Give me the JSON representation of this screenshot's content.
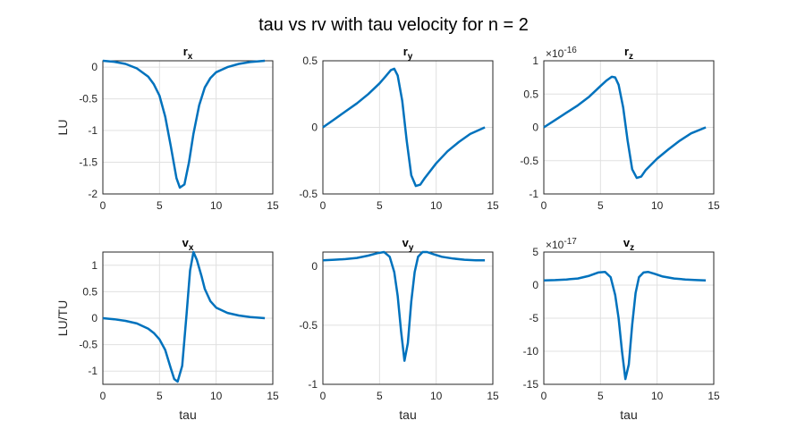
{
  "figure": {
    "title": "tau vs rv with tau velocity for n = 2"
  },
  "chart_data": [
    {
      "type": "line",
      "id": "rx",
      "title": "r",
      "title_sub": "x",
      "exponent": "",
      "xlabel": "",
      "ylabel": "LU",
      "xlim": [
        0,
        15
      ],
      "ylim": [
        -2,
        0.1
      ],
      "xticks": [
        "0",
        "5",
        "10",
        "15"
      ],
      "yticks": [
        [
          -2,
          "-2"
        ],
        [
          -1.5,
          "-1.5"
        ],
        [
          -1,
          "-1"
        ],
        [
          -0.5,
          "-0.5"
        ],
        [
          0,
          "0"
        ]
      ],
      "x": [
        0,
        1,
        2,
        3,
        4,
        4.5,
        5,
        5.5,
        6,
        6.5,
        6.8,
        7.2,
        7.6,
        8,
        8.5,
        9,
        9.5,
        10,
        11,
        12,
        13,
        14.3
      ],
      "y": [
        0.1,
        0.085,
        0.05,
        -0.02,
        -0.15,
        -0.27,
        -0.45,
        -0.78,
        -1.25,
        -1.75,
        -1.9,
        -1.85,
        -1.5,
        -1.05,
        -0.6,
        -0.32,
        -0.17,
        -0.08,
        0.0,
        0.05,
        0.08,
        0.1
      ]
    },
    {
      "type": "line",
      "id": "ry",
      "title": "r",
      "title_sub": "y",
      "exponent": "",
      "xlabel": "",
      "ylabel": "",
      "xlim": [
        0,
        15
      ],
      "ylim": [
        -0.5,
        0.5
      ],
      "xticks": [
        "0",
        "5",
        "10",
        "15"
      ],
      "yticks": [
        [
          -0.5,
          "-0.5"
        ],
        [
          0,
          "0"
        ],
        [
          0.5,
          "0.5"
        ]
      ],
      "x": [
        0,
        1,
        2,
        3,
        4,
        5,
        5.5,
        6,
        6.3,
        6.6,
        7,
        7.4,
        7.8,
        8.2,
        8.6,
        9,
        10,
        11,
        12,
        13,
        14.3
      ],
      "y": [
        0,
        0.06,
        0.12,
        0.18,
        0.25,
        0.33,
        0.38,
        0.43,
        0.44,
        0.39,
        0.2,
        -0.1,
        -0.36,
        -0.44,
        -0.43,
        -0.38,
        -0.27,
        -0.18,
        -0.11,
        -0.05,
        0
      ]
    },
    {
      "type": "line",
      "id": "rz",
      "title": "r",
      "title_sub": "z",
      "exponent": "×10",
      "exponent_power": "-16",
      "xlabel": "",
      "ylabel": "",
      "xlim": [
        0,
        15
      ],
      "ylim": [
        -1,
        1
      ],
      "xticks": [
        "0",
        "5",
        "10",
        "15"
      ],
      "yticks": [
        [
          -1,
          "-1"
        ],
        [
          -0.5,
          "-0.5"
        ],
        [
          0,
          "0"
        ],
        [
          0.5,
          "0.5"
        ],
        [
          1,
          "1"
        ]
      ],
      "x": [
        0,
        1,
        2,
        3,
        4,
        5,
        5.5,
        6,
        6.3,
        6.6,
        7,
        7.4,
        7.8,
        8.2,
        8.6,
        9,
        10,
        11,
        12,
        13,
        14.3
      ],
      "y": [
        0,
        0.11,
        0.22,
        0.33,
        0.46,
        0.62,
        0.7,
        0.76,
        0.75,
        0.64,
        0.3,
        -0.2,
        -0.63,
        -0.76,
        -0.74,
        -0.64,
        -0.47,
        -0.33,
        -0.2,
        -0.09,
        0
      ]
    },
    {
      "type": "line",
      "id": "vx",
      "title": "v",
      "title_sub": "x",
      "exponent": "",
      "xlabel": "tau",
      "ylabel": "LU/TU",
      "xlim": [
        0,
        15
      ],
      "ylim": [
        -1.25,
        1.25
      ],
      "xticks": [
        "0",
        "5",
        "10",
        "15"
      ],
      "yticks": [
        [
          -1,
          "-1"
        ],
        [
          -0.5,
          "-0.5"
        ],
        [
          0,
          "0"
        ],
        [
          0.5,
          "0.5"
        ],
        [
          1,
          "1"
        ]
      ],
      "x": [
        0,
        1,
        2,
        3,
        4,
        4.5,
        5,
        5.5,
        6,
        6.3,
        6.6,
        7,
        7.4,
        7.7,
        8,
        8.3,
        8.7,
        9,
        9.5,
        10,
        11,
        12,
        13,
        14.3
      ],
      "y": [
        0,
        -0.02,
        -0.05,
        -0.1,
        -0.2,
        -0.28,
        -0.4,
        -0.6,
        -0.95,
        -1.15,
        -1.2,
        -0.9,
        0.1,
        0.9,
        1.25,
        1.1,
        0.8,
        0.55,
        0.32,
        0.2,
        0.1,
        0.05,
        0.02,
        0
      ]
    },
    {
      "type": "line",
      "id": "vy",
      "title": "v",
      "title_sub": "y",
      "exponent": "",
      "xlabel": "tau",
      "ylabel": "",
      "xlim": [
        0,
        15
      ],
      "ylim": [
        -1,
        0.12
      ],
      "xticks": [
        "0",
        "5",
        "10",
        "15"
      ],
      "yticks": [
        [
          -1,
          "-1"
        ],
        [
          -0.5,
          "-0.5"
        ],
        [
          0,
          "0"
        ]
      ],
      "x": [
        0,
        1,
        2,
        3,
        4,
        4.8,
        5.4,
        5.9,
        6.3,
        6.6,
        6.9,
        7.2,
        7.5,
        7.8,
        8.1,
        8.4,
        8.8,
        9.2,
        9.8,
        10.5,
        11.5,
        12.5,
        13.5,
        14.3
      ],
      "y": [
        0.05,
        0.055,
        0.06,
        0.07,
        0.09,
        0.11,
        0.12,
        0.08,
        -0.05,
        -0.25,
        -0.55,
        -0.8,
        -0.65,
        -0.3,
        -0.05,
        0.08,
        0.12,
        0.12,
        0.1,
        0.08,
        0.065,
        0.055,
        0.05,
        0.05
      ]
    },
    {
      "type": "line",
      "id": "vz",
      "title": "v",
      "title_sub": "z",
      "exponent": "×10",
      "exponent_power": "-17",
      "xlabel": "tau",
      "ylabel": "",
      "xlim": [
        0,
        15
      ],
      "ylim": [
        -15,
        5
      ],
      "xticks": [
        "0",
        "5",
        "10",
        "15"
      ],
      "yticks": [
        [
          -15,
          "-15"
        ],
        [
          -10,
          "-10"
        ],
        [
          -5,
          "-5"
        ],
        [
          0,
          "0"
        ],
        [
          5,
          "5"
        ]
      ],
      "x": [
        0,
        1,
        2,
        3,
        4,
        4.8,
        5.4,
        5.9,
        6.3,
        6.6,
        6.9,
        7.2,
        7.5,
        7.8,
        8.1,
        8.4,
        8.8,
        9.2,
        9.8,
        10.5,
        11.5,
        12.5,
        13.5,
        14.3
      ],
      "y": [
        0.7,
        0.75,
        0.85,
        1.0,
        1.4,
        1.9,
        2.0,
        1.2,
        -1.5,
        -5,
        -10,
        -14.2,
        -12,
        -6,
        -1.2,
        1.2,
        1.9,
        2.0,
        1.7,
        1.3,
        1.0,
        0.85,
        0.75,
        0.7
      ]
    }
  ]
}
